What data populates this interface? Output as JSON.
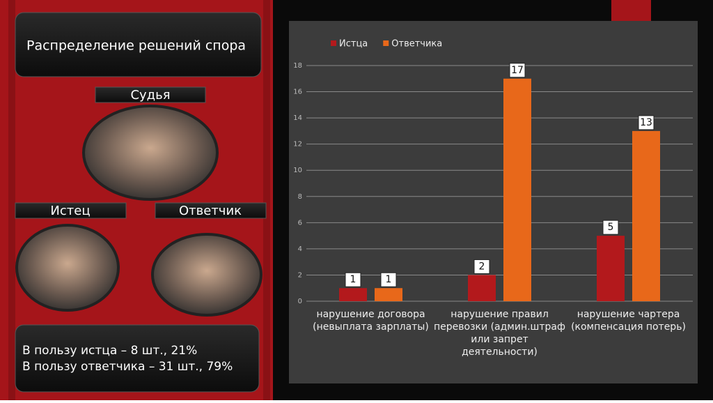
{
  "slide": {
    "title": "Распределение решений спора",
    "judge": "Судья",
    "plaintiff": "Истец",
    "defendant": "Ответчик",
    "summary": [
      "В пользу истца – 8 шт., 21%",
      "В пользу ответчика – 31 шт., 79%"
    ]
  },
  "chart_data": {
    "type": "bar",
    "categories": [
      "нарушение договора (невыплата зарплаты)",
      "нарушение правил перевозки (админ.штраф или запрет деятельности)",
      "нарушение чартера (компенсация потерь)"
    ],
    "series": [
      {
        "name": "Истца",
        "color": "#b3191c",
        "values": [
          1,
          2,
          5
        ]
      },
      {
        "name": "Ответчика",
        "color": "#e8681a",
        "values": [
          1,
          17,
          13
        ]
      }
    ],
    "ylim": [
      0,
      18
    ],
    "yticks": [
      0,
      2,
      4,
      6,
      8,
      10,
      12,
      14,
      16,
      18
    ],
    "grid": true,
    "legend": "top"
  }
}
